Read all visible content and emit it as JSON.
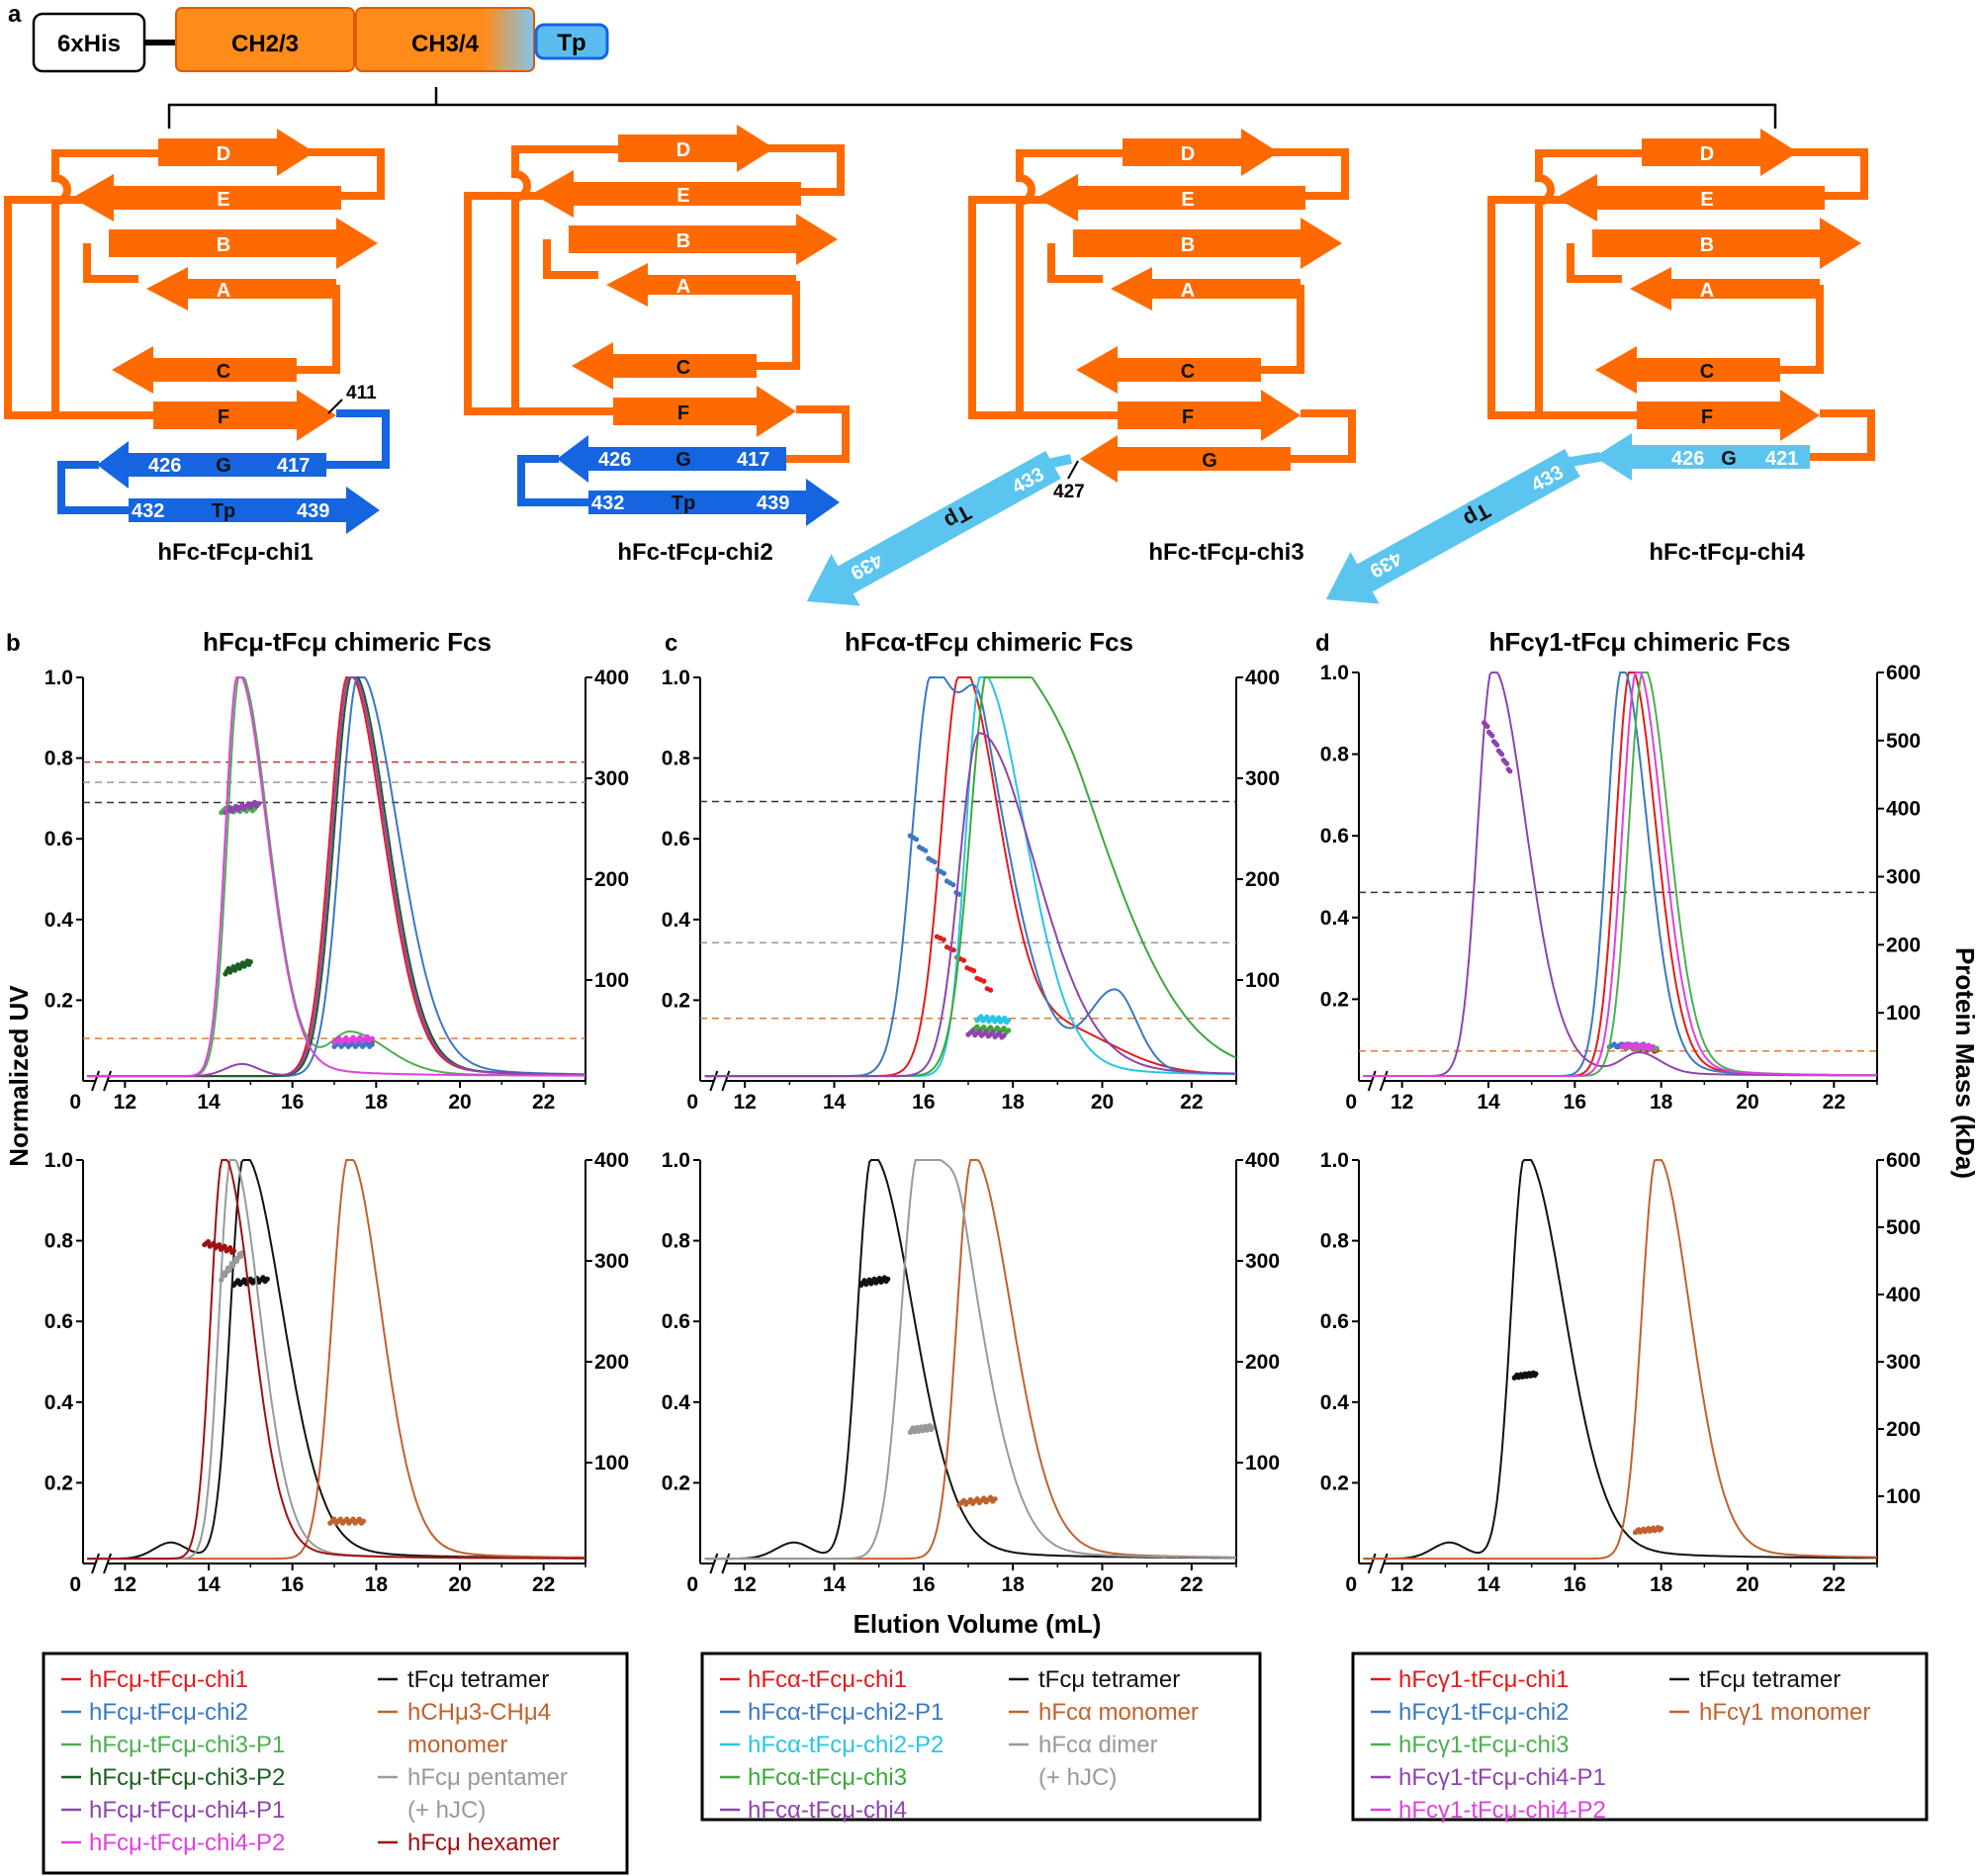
{
  "schematic": {
    "panel_label": "a",
    "domains": {
      "his": "6xHis",
      "ch23": "CH2/3",
      "ch34": "CH3/4",
      "tp": "Tp"
    },
    "strands": {
      "A": "A",
      "B": "B",
      "C": "C",
      "D": "D",
      "E": "E",
      "F": "F",
      "G": "G",
      "Tp": "Tp"
    },
    "constructs": [
      {
        "name": "hFc-tFcμ-chi1",
        "nums": [
          "411",
          "426",
          "417",
          "432",
          "439"
        ]
      },
      {
        "name": "hFc-tFcμ-chi2",
        "nums": [
          "426",
          "417",
          "432",
          "439"
        ]
      },
      {
        "name": "hFc-tFcμ-chi3",
        "nums": [
          "427",
          "433",
          "439"
        ]
      },
      {
        "name": "hFc-tFcμ-chi4",
        "nums": [
          "426",
          "421",
          "433",
          "439"
        ]
      }
    ],
    "colors": {
      "orange": "#ff6a00",
      "blue": "#1565e0",
      "light_blue": "#5bc5f0"
    }
  },
  "axes": {
    "ylabel_left": "Normalized UV",
    "ylabel_right": "Protein Mass (kDa)",
    "xlabel": "Elution Volume (mL)",
    "x_ticks": [
      "12",
      "14",
      "16",
      "18",
      "20",
      "22"
    ],
    "zero": "0",
    "y_ticks": [
      "0.2",
      "0.4",
      "0.6",
      "0.8",
      "1.0"
    ],
    "right_ticks_400": [
      "100",
      "200",
      "300",
      "400"
    ],
    "right_ticks_600": [
      "100",
      "200",
      "300",
      "400",
      "500",
      "600"
    ]
  },
  "chart_data": [
    {
      "id": "b-top",
      "panel": "b",
      "title": "hFcμ-tFcμ chimeric Fcs",
      "type": "line",
      "xlim": [
        11,
        23
      ],
      "ylim": [
        0,
        1.0
      ],
      "y2lim": [
        0,
        400
      ],
      "hlines": [
        {
          "kda": 316,
          "color": "#c0392b"
        },
        {
          "kda": 296,
          "color": "#999999"
        },
        {
          "kda": 276,
          "color": "#333333"
        },
        {
          "kda": 42,
          "color": "#e07b39"
        }
      ],
      "series": [
        {
          "name": "hFcμ-tFcμ-chi1",
          "color": "#e41a1c",
          "peaks": [
            [
              17.35,
              1.0,
              0.45,
              0.85
            ]
          ],
          "mass": [
            [
              17.0,
              17.9,
              40,
              38
            ]
          ]
        },
        {
          "name": "hFcμ-tFcμ-chi2",
          "color": "#3a78c2",
          "peaks": [
            [
              17.6,
              1.0,
              0.45,
              0.95
            ]
          ],
          "mass": [
            [
              17.0,
              17.9,
              36,
              36
            ]
          ]
        },
        {
          "name": "hFcμ-tFcμ-chi3-P1",
          "color": "#4caf50",
          "peaks": [
            [
              14.75,
              1.0,
              0.3,
              0.7
            ],
            [
              17.4,
              0.1,
              0.5,
              0.9
            ]
          ],
          "mass": [
            [
              14.3,
              15.1,
              268,
              270
            ]
          ]
        },
        {
          "name": "hFcμ-tFcμ-chi3-P2",
          "color": "#1b5e20",
          "peaks": [
            [
              17.45,
              1.0,
              0.45,
              0.85
            ]
          ],
          "mass": [
            [
              14.4,
              15.0,
              108,
              118
            ]
          ]
        },
        {
          "name": "hFcμ-tFcμ-chi4-P1",
          "color": "#8e44ad",
          "peaks": [
            [
              17.4,
              1.0,
              0.45,
              0.85
            ],
            [
              14.8,
              0.03,
              0.4,
              0.4
            ]
          ],
          "mass": [
            [
              14.4,
              15.2,
              268,
              275
            ]
          ]
        },
        {
          "name": "hFcμ-tFcμ-chi4-P2",
          "color": "#e040e0",
          "peaks": [
            [
              14.7,
              1.0,
              0.3,
              0.72
            ]
          ],
          "mass": [
            [
              17.0,
              17.9,
              40,
              42
            ]
          ]
        }
      ]
    },
    {
      "id": "c-top",
      "panel": "c",
      "title": "hFcα-tFcμ chimeric Fcs",
      "type": "line",
      "xlim": [
        11,
        23
      ],
      "ylim": [
        0,
        1.0
      ],
      "y2lim": [
        0,
        400
      ],
      "hlines": [
        {
          "kda": 277,
          "color": "#333333"
        },
        {
          "kda": 137,
          "color": "#999999"
        },
        {
          "kda": 62,
          "color": "#e07b39"
        }
      ],
      "series": [
        {
          "name": "hFcα-tFcμ-chi1",
          "color": "#e41a1c",
          "peaks": [
            [
              16.85,
              1.0,
              0.45,
              0.85
            ],
            [
              19.2,
              0.1,
              1.2,
              1.2
            ]
          ],
          "mass": [
            [
              16.3,
              17.5,
              145,
              90
            ]
          ]
        },
        {
          "name": "hFcα-tFcμ-chi2-P1",
          "color": "#3a78c2",
          "peaks": [
            [
              16.2,
              1.0,
              0.45,
              0.8
            ],
            [
              17.35,
              0.55,
              0.4,
              0.9
            ],
            [
              20.3,
              0.2,
              0.6,
              0.5
            ]
          ],
          "mass": [
            [
              15.7,
              16.8,
              245,
              185
            ]
          ]
        },
        {
          "name": "hFcα-tFcμ-chi2-P2",
          "color": "#29c5e6",
          "peaks": [
            [
              17.3,
              1.0,
              0.35,
              1.0
            ]
          ],
          "mass": [
            [
              17.2,
              17.9,
              62,
              60
            ]
          ]
        },
        {
          "name": "hFcα-tFcμ-chi3",
          "color": "#3ca83c",
          "peaks": [
            [
              17.5,
              1.0,
              0.45,
              1.4
            ],
            [
              19.6,
              0.4,
              1.0,
              1.5
            ]
          ],
          "mass": [
            [
              17.1,
              17.9,
              52,
              50
            ]
          ]
        },
        {
          "name": "hFcα-tFcμ-chi4",
          "color": "#8e44ad",
          "peaks": [
            [
              17.25,
              0.85,
              0.45,
              1.3
            ]
          ],
          "mass": [
            [
              17.0,
              17.8,
              48,
              45
            ]
          ]
        }
      ]
    },
    {
      "id": "d-top",
      "panel": "d",
      "title": "hFcγ1-tFcμ chimeric Fcs",
      "type": "line",
      "xlim": [
        11,
        23
      ],
      "ylim": [
        0,
        1.0
      ],
      "y2lim": [
        0,
        600
      ],
      "hlines": [
        {
          "kda": 277,
          "color": "#333333"
        },
        {
          "kda": 44,
          "color": "#e07b39"
        }
      ],
      "series": [
        {
          "name": "hFcγ1-tFcμ-chi1",
          "color": "#e41a1c",
          "peaks": [
            [
              17.3,
              1.0,
              0.35,
              0.6
            ]
          ],
          "mass": [
            [
              17.0,
              17.9,
              52,
              45
            ]
          ]
        },
        {
          "name": "hFcγ1-tFcμ-chi2",
          "color": "#3a78c2",
          "peaks": [
            [
              17.1,
              1.0,
              0.35,
              0.6
            ]
          ],
          "mass": [
            [
              16.8,
              17.7,
              52,
              52
            ]
          ]
        },
        {
          "name": "hFcγ1-tFcμ-chi3",
          "color": "#4caf50",
          "peaks": [
            [
              17.6,
              1.0,
              0.35,
              0.6
            ]
          ],
          "mass": [
            [
              17.2,
              17.9,
              50,
              48
            ]
          ]
        },
        {
          "name": "hFcγ1-tFcμ-chi4-P1",
          "color": "#8e44ad",
          "peaks": [
            [
              14.1,
              1.0,
              0.35,
              0.8
            ],
            [
              17.5,
              0.05,
              0.4,
              0.5
            ]
          ],
          "mass": [
            [
              13.9,
              14.5,
              528,
              455
            ]
          ]
        },
        {
          "name": "hFcγ1-tFcμ-chi4-P2",
          "color": "#e040e0",
          "peaks": [
            [
              17.45,
              1.0,
              0.35,
              0.6
            ]
          ],
          "mass": [
            [
              17.1,
              17.8,
              52,
              50
            ]
          ]
        }
      ]
    },
    {
      "id": "b-bottom",
      "panel": "b",
      "type": "line",
      "xlim": [
        11,
        23
      ],
      "ylim": [
        0,
        1.0
      ],
      "y2lim": [
        0,
        400
      ],
      "series": [
        {
          "name": "tFcμ tetramer",
          "color": "#111111",
          "peaks": [
            [
              14.85,
              1.0,
              0.33,
              0.95
            ],
            [
              13.1,
              0.04,
              0.4,
              0.4
            ]
          ],
          "mass": [
            [
              14.6,
              15.4,
              278,
              282
            ]
          ]
        },
        {
          "name": "hCHμ3-CHμ4 monomer",
          "color": "#c0622d",
          "peaks": [
            [
              17.35,
              1.0,
              0.4,
              0.8
            ]
          ],
          "mass": [
            [
              16.9,
              17.7,
              42,
              42
            ]
          ]
        },
        {
          "name": "hFcμ pentamer (+ hJC)",
          "color": "#999999",
          "peaks": [
            [
              14.55,
              1.0,
              0.3,
              0.7
            ]
          ],
          "mass": [
            [
              14.3,
              14.8,
              283,
              308
            ]
          ]
        },
        {
          "name": "hFcμ hexamer",
          "color": "#a01010",
          "peaks": [
            [
              14.35,
              1.0,
              0.3,
              0.7
            ]
          ],
          "mass": [
            [
              13.9,
              14.6,
              318,
              310
            ]
          ]
        }
      ]
    },
    {
      "id": "c-bottom",
      "panel": "c",
      "type": "line",
      "xlim": [
        11,
        23
      ],
      "ylim": [
        0,
        1.0
      ],
      "y2lim": [
        0,
        400
      ],
      "series": [
        {
          "name": "tFcμ tetramer",
          "color": "#111111",
          "peaks": [
            [
              14.85,
              1.0,
              0.33,
              0.95
            ],
            [
              13.1,
              0.04,
              0.4,
              0.4
            ]
          ],
          "mass": [
            [
              14.6,
              15.2,
              278,
              282
            ]
          ]
        },
        {
          "name": "hFcα monomer",
          "color": "#c0622d",
          "peaks": [
            [
              17.1,
              1.0,
              0.35,
              0.9
            ]
          ],
          "mass": [
            [
              16.8,
              17.6,
              60,
              64
            ]
          ]
        },
        {
          "name": "hFcα dimer (+ hJC)",
          "color": "#999999",
          "peaks": [
            [
              15.9,
              1.0,
              0.4,
              0.7
            ],
            [
              16.9,
              0.5,
              0.4,
              0.8
            ]
          ],
          "mass": [
            [
              15.7,
              16.2,
              132,
              135
            ]
          ]
        }
      ]
    },
    {
      "id": "d-bottom",
      "panel": "d",
      "type": "line",
      "xlim": [
        11,
        23
      ],
      "ylim": [
        0,
        1.0
      ],
      "y2lim": [
        0,
        600
      ],
      "series": [
        {
          "name": "tFcμ tetramer",
          "color": "#111111",
          "peaks": [
            [
              14.85,
              1.0,
              0.33,
              0.95
            ],
            [
              13.1,
              0.04,
              0.4,
              0.4
            ]
          ],
          "mass": [
            [
              14.6,
              15.1,
              278,
              282
            ]
          ]
        },
        {
          "name": "hFcγ1 monomer",
          "color": "#c0622d",
          "peaks": [
            [
              17.9,
              1.0,
              0.35,
              0.8
            ]
          ],
          "mass": [
            [
              17.4,
              18.0,
              48,
              52
            ]
          ]
        }
      ]
    }
  ],
  "legends": [
    {
      "id": "leg-b",
      "left": [
        {
          "label": "hFcμ-tFcμ-chi1",
          "color": "#e41a1c"
        },
        {
          "label": "hFcμ-tFcμ-chi2",
          "color": "#3a78c2"
        },
        {
          "label": "hFcμ-tFcμ-chi3-P1",
          "color": "#4caf50"
        },
        {
          "label": "hFcμ-tFcμ-chi3-P2",
          "color": "#1b5e20"
        },
        {
          "label": "hFcμ-tFcμ-chi4-P1",
          "color": "#8e44ad"
        },
        {
          "label": "hFcμ-tFcμ-chi4-P2",
          "color": "#e040e0"
        }
      ],
      "right": [
        {
          "label": "tFcμ tetramer",
          "color": "#111111"
        },
        {
          "label": "hCHμ3-CHμ4",
          "color": "#c0622d",
          "cont": "monomer"
        },
        {
          "label": "hFcμ pentamer",
          "color": "#999999",
          "cont": "(+ hJC)"
        },
        {
          "label": "hFcμ hexamer",
          "color": "#a01010"
        }
      ]
    },
    {
      "id": "leg-c",
      "left": [
        {
          "label": "hFcα-tFcμ-chi1",
          "color": "#e41a1c"
        },
        {
          "label": "hFcα-tFcμ-chi2-P1",
          "color": "#3a78c2"
        },
        {
          "label": "hFcα-tFcμ-chi2-P2",
          "color": "#29c5e6"
        },
        {
          "label": "hFcα-tFcμ-chi3",
          "color": "#3ca83c"
        },
        {
          "label": "hFcα-tFcμ-chi4",
          "color": "#8e44ad"
        }
      ],
      "right": [
        {
          "label": "tFcμ tetramer",
          "color": "#111111"
        },
        {
          "label": "hFcα monomer",
          "color": "#c0622d"
        },
        {
          "label": "hFcα dimer",
          "color": "#999999",
          "cont": "(+ hJC)"
        }
      ]
    },
    {
      "id": "leg-d",
      "left": [
        {
          "label": "hFcγ1-tFcμ-chi1",
          "color": "#e41a1c"
        },
        {
          "label": "hFcγ1-tFcμ-chi2",
          "color": "#3a78c2"
        },
        {
          "label": "hFcγ1-tFcμ-chi3",
          "color": "#4caf50"
        },
        {
          "label": "hFcγ1-tFcμ-chi4-P1",
          "color": "#8e44ad"
        },
        {
          "label": "hFcγ1-tFcμ-chi4-P2",
          "color": "#e040e0"
        }
      ],
      "right": [
        {
          "label": "tFcμ tetramer",
          "color": "#111111"
        },
        {
          "label": "hFcγ1 monomer",
          "color": "#c0622d"
        }
      ]
    }
  ]
}
